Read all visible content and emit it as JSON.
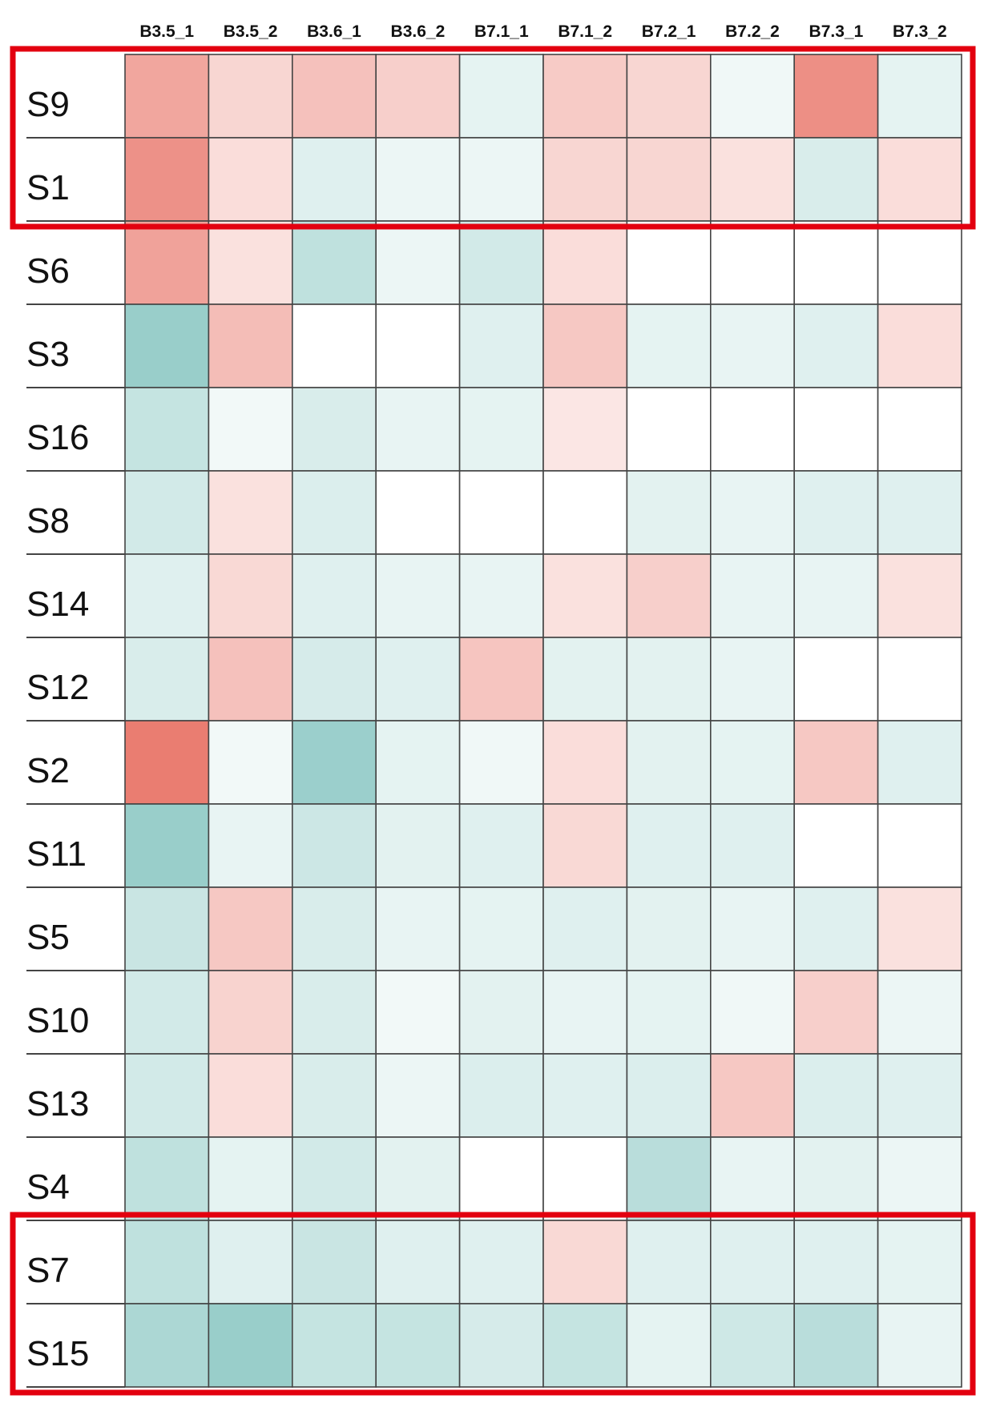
{
  "colors": {
    "high": "#e9766a",
    "low": "#7fc2bd",
    "mid": "#ffffff",
    "highlight_box": "#e3000f",
    "grid": "#444444"
  },
  "chart_data": {
    "type": "heatmap",
    "columns": [
      "B3.5_1",
      "B3.5_2",
      "B3.6_1",
      "B3.6_2",
      "B7.1_1",
      "B7.1_2",
      "B7.2_1",
      "B7.2_2",
      "B7.3_1",
      "B7.3_2"
    ],
    "rows": [
      "S9",
      "S1",
      "S6",
      "S3",
      "S16",
      "S8",
      "S14",
      "S12",
      "S2",
      "S11",
      "S5",
      "S10",
      "S13",
      "S4",
      "S7",
      "S15"
    ],
    "value_range": [
      -1,
      1
    ],
    "values": [
      [
        0.65,
        0.3,
        0.45,
        0.35,
        -0.2,
        0.38,
        0.3,
        -0.12,
        0.82,
        -0.2
      ],
      [
        0.8,
        0.25,
        -0.25,
        -0.15,
        -0.15,
        0.3,
        0.3,
        0.22,
        -0.3,
        0.25
      ],
      [
        0.68,
        0.22,
        -0.5,
        -0.15,
        -0.35,
        0.25,
        0.0,
        0.0,
        0.0,
        0.0
      ],
      [
        -0.8,
        0.48,
        0.0,
        0.0,
        -0.25,
        0.4,
        -0.2,
        -0.18,
        -0.25,
        0.25
      ],
      [
        -0.45,
        -0.1,
        -0.3,
        -0.18,
        -0.2,
        0.18,
        0.0,
        0.0,
        0.0,
        0.0
      ],
      [
        -0.35,
        0.22,
        -0.28,
        0.0,
        0.0,
        0.0,
        -0.22,
        -0.18,
        -0.25,
        -0.25
      ],
      [
        -0.25,
        0.28,
        -0.25,
        -0.18,
        -0.18,
        0.22,
        0.35,
        -0.18,
        -0.18,
        0.22
      ],
      [
        -0.3,
        0.45,
        -0.32,
        -0.25,
        0.42,
        -0.22,
        -0.22,
        -0.18,
        0.0,
        0.0
      ],
      [
        0.95,
        -0.1,
        -0.78,
        -0.2,
        -0.12,
        0.25,
        -0.22,
        -0.2,
        0.4,
        -0.25
      ],
      [
        -0.8,
        -0.18,
        -0.4,
        -0.22,
        -0.25,
        0.28,
        -0.25,
        -0.25,
        0.0,
        0.0
      ],
      [
        -0.42,
        0.4,
        -0.3,
        -0.18,
        -0.2,
        -0.25,
        -0.22,
        -0.18,
        -0.25,
        0.22
      ],
      [
        -0.35,
        0.32,
        -0.3,
        -0.1,
        -0.22,
        -0.18,
        -0.2,
        -0.12,
        0.35,
        -0.15
      ],
      [
        -0.35,
        0.25,
        -0.3,
        -0.15,
        -0.28,
        -0.25,
        -0.28,
        0.4,
        -0.28,
        -0.25
      ],
      [
        -0.5,
        -0.2,
        -0.35,
        -0.22,
        0.0,
        0.0,
        -0.55,
        -0.18,
        -0.22,
        -0.15
      ],
      [
        -0.5,
        -0.25,
        -0.42,
        -0.25,
        -0.25,
        0.28,
        -0.25,
        -0.25,
        -0.25,
        -0.2
      ],
      [
        -0.65,
        -0.8,
        -0.45,
        -0.45,
        -0.32,
        -0.45,
        -0.2,
        -0.38,
        -0.55,
        -0.18
      ]
    ],
    "highlighted_rows": [
      [
        "S9",
        "S1"
      ],
      [
        "S7",
        "S15"
      ]
    ],
    "legend": "none"
  }
}
